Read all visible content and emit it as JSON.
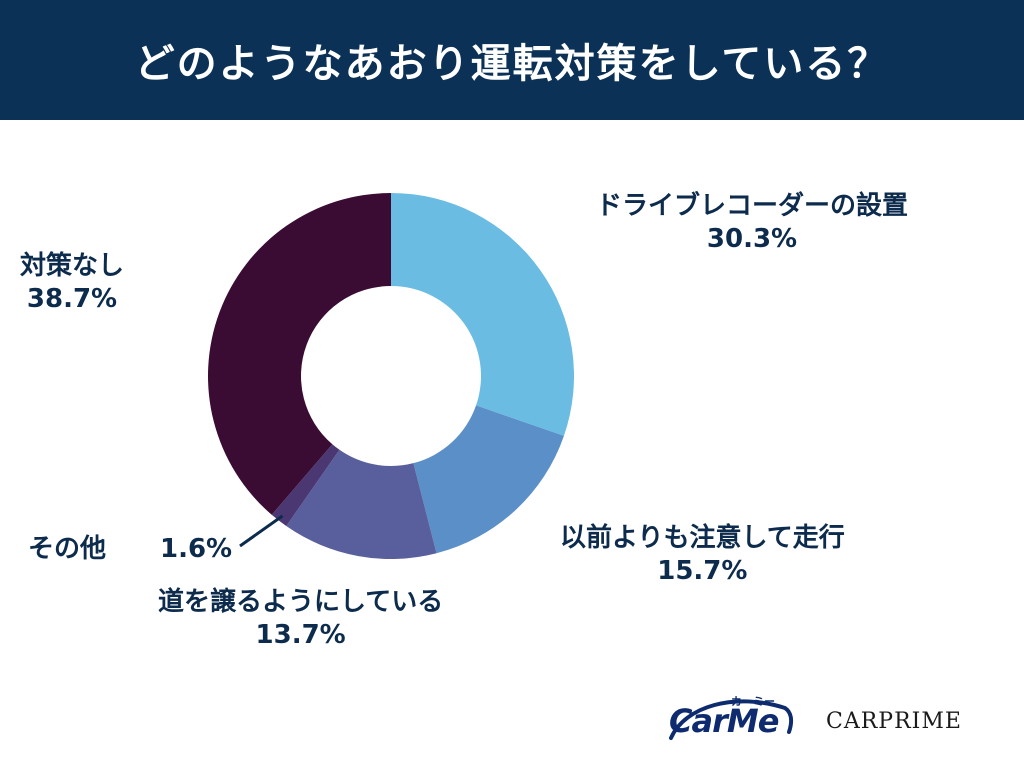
{
  "header": {
    "title": "どのようなあおり運転対策をしている？"
  },
  "chart_data": {
    "type": "pie",
    "style": "donut",
    "start_angle_deg": 0,
    "direction": "clockwise",
    "slices": [
      {
        "label": "ドライブレコーダーの設置",
        "value": 30.3,
        "value_label": "30.3%",
        "color": "#6bbce3"
      },
      {
        "label": "以前よりも注意して走行",
        "value": 15.7,
        "value_label": "15.7%",
        "color": "#5b8fc8"
      },
      {
        "label": "道を譲るようにしている",
        "value": 13.7,
        "value_label": "13.7%",
        "color": "#585f9c"
      },
      {
        "label": "その他",
        "value": 1.6,
        "value_label": "1.6%",
        "color": "#4b3872"
      },
      {
        "label": "対策なし",
        "value": 38.7,
        "value_label": "38.7%",
        "color": "#3a0c33"
      }
    ]
  },
  "logos": {
    "carme": "CarMe",
    "carme_kana": "カーミー",
    "carprime": "CARPRIME"
  },
  "colors": {
    "header_bg": "#0b3157",
    "label_text": "#0d2b4c"
  }
}
